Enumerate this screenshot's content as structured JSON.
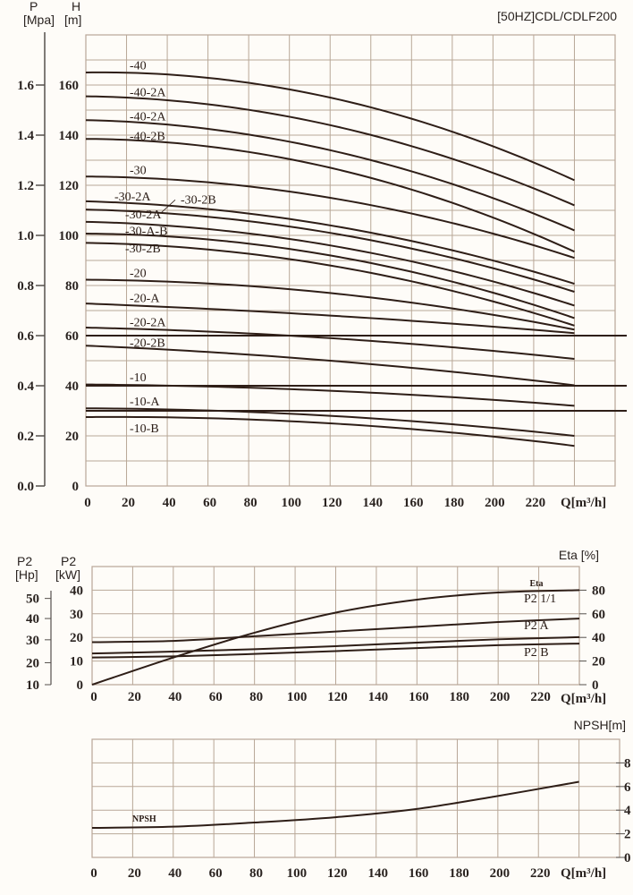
{
  "colors": {
    "background": "#fefcf8",
    "grid": "#b8a797",
    "curve": "#2e1e17",
    "axis": "#55504c"
  },
  "chart_data": [
    {
      "type": "line",
      "title": "[50HZ]CDL/CDLF200",
      "xlabel": "Q[m³/h]",
      "ylabel_left": "P [Mpa]",
      "ylabel": "H [m]",
      "xlim": [
        0,
        260
      ],
      "ylim": [
        0,
        180
      ],
      "x_ticks": [
        0,
        20,
        40,
        60,
        80,
        100,
        120,
        140,
        160,
        180,
        200,
        220
      ],
      "y_ticks": [
        0,
        20,
        40,
        60,
        80,
        100,
        120,
        140,
        160
      ],
      "p_ticks": [
        "0.0",
        "0.2",
        "0.4",
        "0.6",
        "0.8",
        "1.0",
        "1.2",
        "1.4",
        "1.6"
      ],
      "grid": true,
      "emphasized_lines_H": [
        60,
        40,
        30
      ],
      "x": [
        0,
        120,
        240
      ],
      "series": [
        {
          "label": "-40",
          "values": [
            165,
            155,
            122
          ]
        },
        {
          "label": "-40-2A",
          "values": [
            155.5,
            144,
            112
          ]
        },
        {
          "label": "-40-2A",
          "values": [
            146,
            134,
            102
          ]
        },
        {
          "label": "-40-2B",
          "values": [
            138.5,
            127,
            93.5
          ]
        },
        {
          "label": "-30",
          "values": [
            123.5,
            115,
            91
          ]
        },
        {
          "label": "-30-2A",
          "values": [
            113.6,
            104,
            80.7
          ]
        },
        {
          "label": "-30-2B",
          "values": [
            110.3,
            101,
            77.5
          ]
        },
        {
          "label": "-30-2A",
          "values": [
            105.4,
            96,
            72
          ]
        },
        {
          "label": "-30-A-B",
          "values": [
            100.7,
            92,
            67
          ]
        },
        {
          "label": "-30-2B",
          "values": [
            97,
            88,
            64
          ]
        },
        {
          "label": "-20",
          "values": [
            82.3,
            77,
            62.4
          ]
        },
        {
          "label": "-20-A",
          "values": [
            72.8,
            68,
            61
          ]
        },
        {
          "label": "-20-2A",
          "values": [
            63.2,
            59,
            50.7
          ]
        },
        {
          "label": "-20-2B",
          "values": [
            56,
            50,
            40.2
          ]
        },
        {
          "label": "-10",
          "values": [
            40.5,
            38,
            32
          ]
        },
        {
          "label": "-10-A",
          "values": [
            31,
            28,
            20
          ]
        },
        {
          "label": "-10-B",
          "values": [
            27.5,
            25,
            16
          ]
        }
      ]
    },
    {
      "type": "line",
      "xlabel": "Q[m³/h]",
      "ylabel_hp": "P2 [Hp]",
      "ylabel": "P2 [kW]",
      "ylabel_right": "Eta [%]",
      "xlim": [
        0,
        240
      ],
      "ylim": [
        0,
        50
      ],
      "ylim_right": [
        0,
        100
      ],
      "x_ticks": [
        0,
        20,
        40,
        60,
        80,
        100,
        120,
        140,
        160,
        180,
        200,
        220
      ],
      "y_ticks": [
        0,
        10,
        20,
        30,
        40
      ],
      "y_right_ticks": [
        0,
        20,
        40,
        60,
        80
      ],
      "hp_ticks": [
        {
          "hp": 10,
          "kw": 0
        },
        {
          "hp": 20,
          "kw": 9.3
        },
        {
          "hp": 30,
          "kw": 19
        },
        {
          "hp": 40,
          "kw": 28
        },
        {
          "hp": 50,
          "kw": 36.5
        }
      ],
      "grid": true,
      "x": [
        0,
        40,
        80,
        120,
        160,
        200,
        240
      ],
      "series": [
        {
          "name": "Eta",
          "axis": "right",
          "values": [
            0,
            23,
            44,
            61,
            72,
            78,
            80
          ]
        },
        {
          "name": "P2 1/1",
          "axis": "left",
          "values": [
            18,
            18.5,
            20.5,
            22.5,
            24.5,
            26.5,
            28
          ]
        },
        {
          "name": "P2 A",
          "axis": "left",
          "values": [
            13.2,
            14,
            15,
            16.3,
            17.8,
            19.2,
            20.1
          ]
        },
        {
          "name": "P2 B",
          "axis": "left",
          "values": [
            11.5,
            12,
            13,
            14.2,
            15.5,
            16.7,
            17.4
          ]
        }
      ]
    },
    {
      "type": "line",
      "xlabel": "Q[m³/h]",
      "ylabel_right": "NPSH[m]",
      "xlim": [
        0,
        260
      ],
      "ylim": [
        0,
        10
      ],
      "x_ticks": [
        0,
        20,
        40,
        60,
        80,
        100,
        120,
        140,
        160,
        180,
        200,
        220
      ],
      "y_right_ticks": [
        0,
        2,
        4,
        6,
        8
      ],
      "grid": true,
      "x": [
        0,
        40,
        80,
        120,
        160,
        200,
        240
      ],
      "series": [
        {
          "name": "NPSH",
          "values": [
            2.5,
            2.6,
            2.95,
            3.4,
            4.1,
            5.2,
            6.4
          ]
        }
      ]
    }
  ]
}
